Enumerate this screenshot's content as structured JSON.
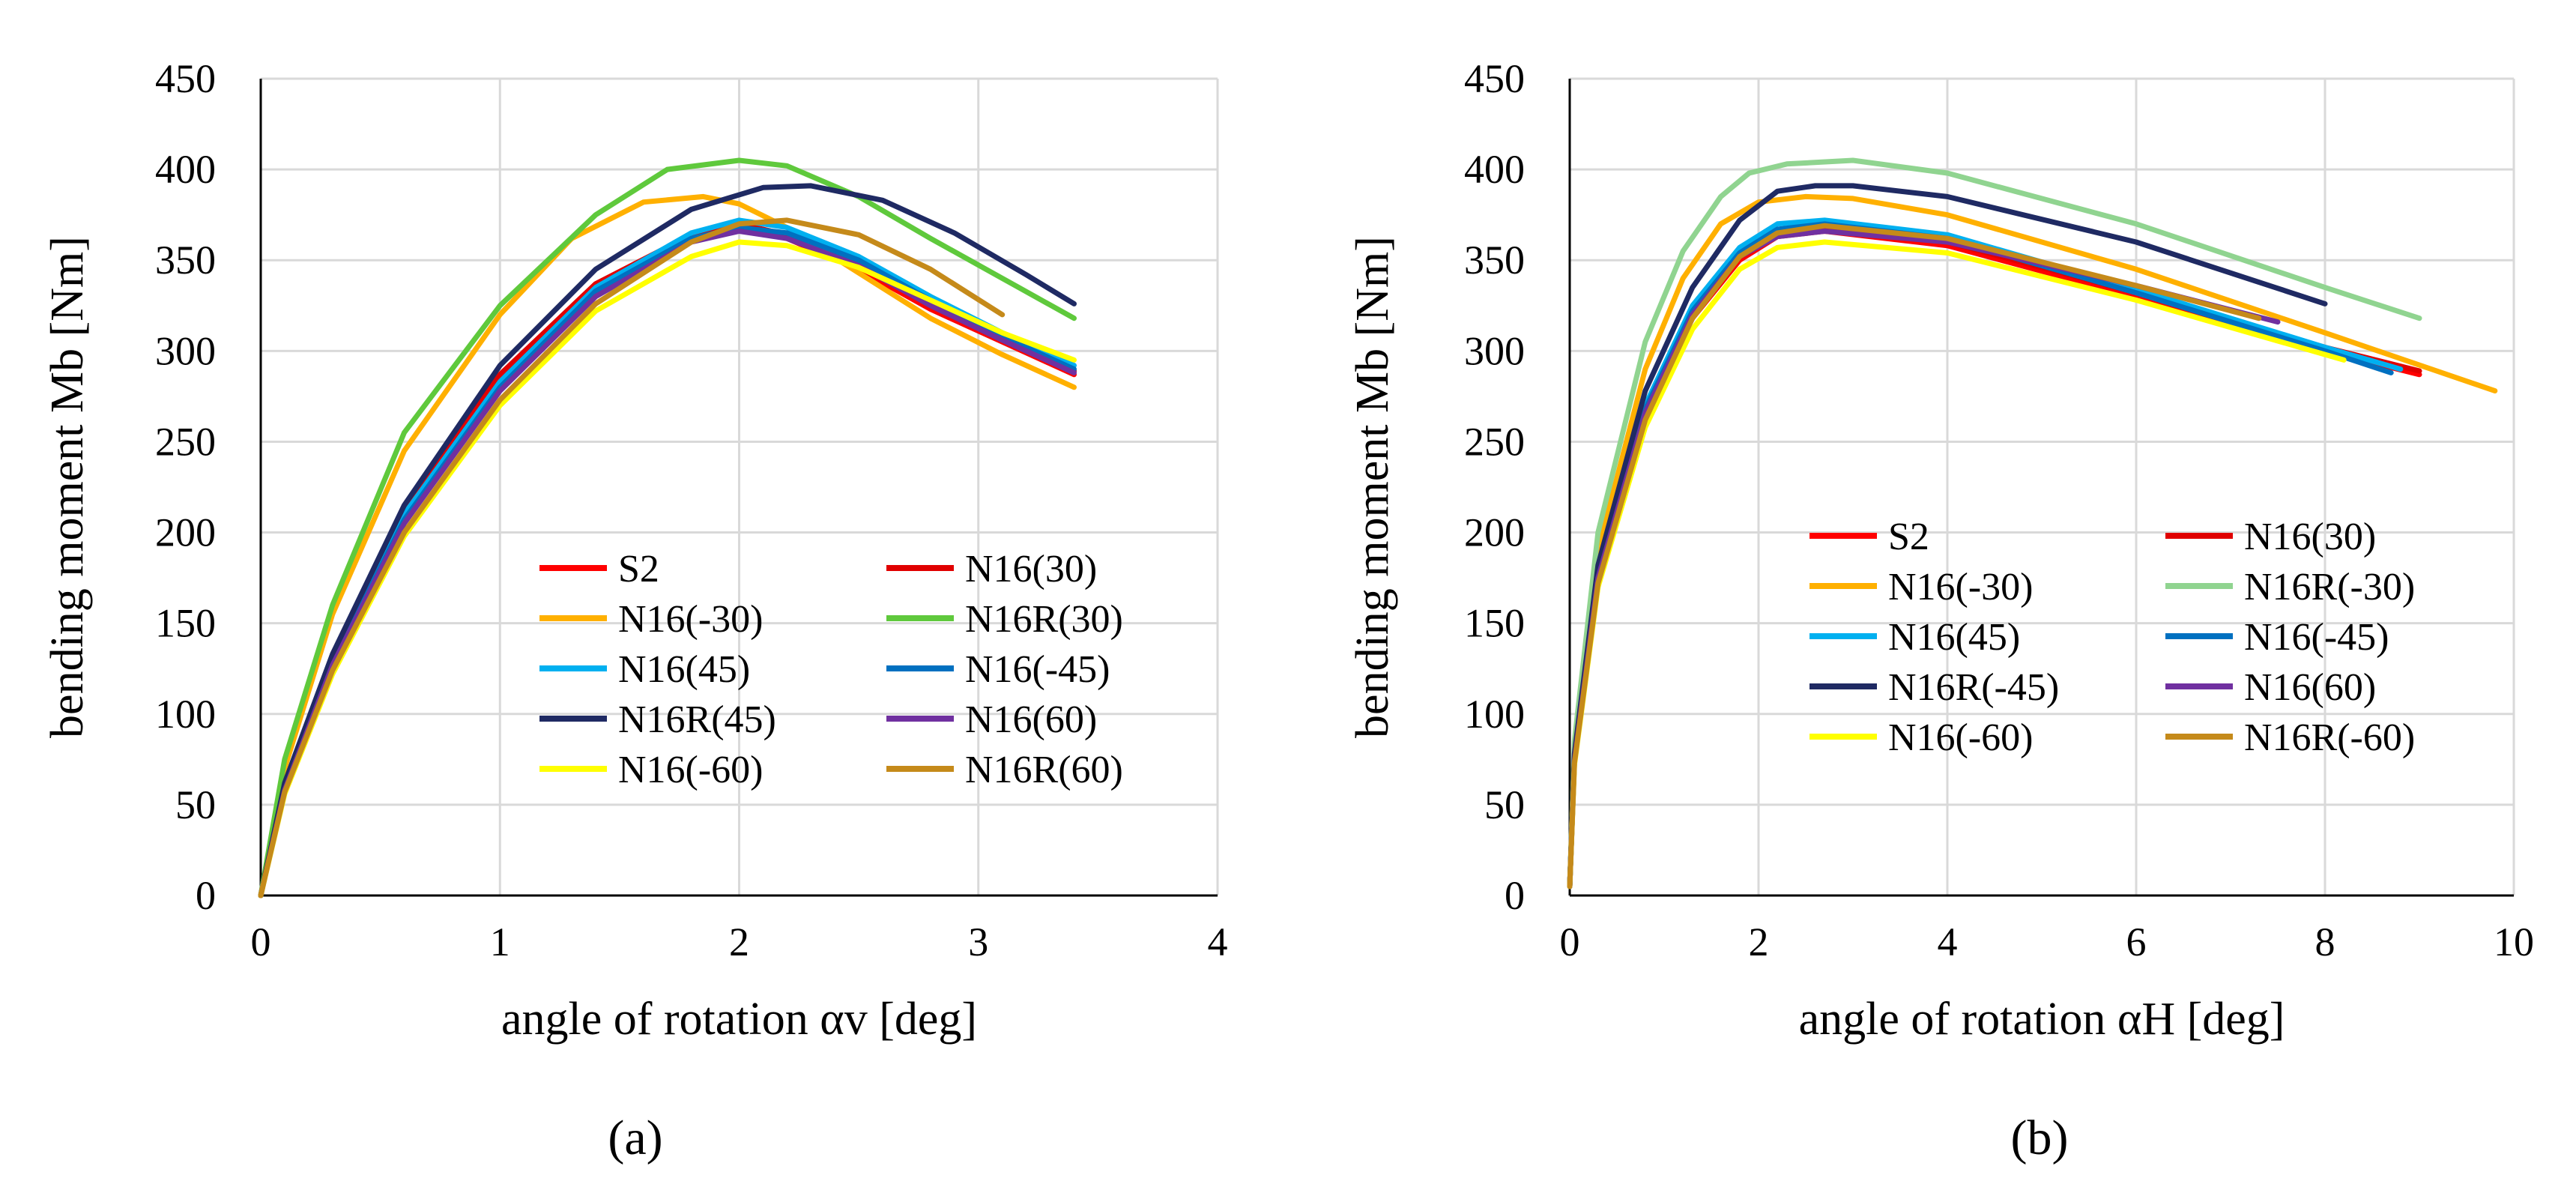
{
  "chart_data": [
    {
      "type": "line",
      "panel_label": "(a)",
      "xlabel": "angle of rotation αv [deg]",
      "ylabel": "bending moment Mb [Nm]",
      "xlim": [
        0,
        4
      ],
      "ylim": [
        0,
        450
      ],
      "xticks": [
        "0",
        "1",
        "2",
        "3",
        "4"
      ],
      "yticks": [
        "0",
        "50",
        "100",
        "150",
        "200",
        "250",
        "300",
        "350",
        "400",
        "450"
      ],
      "grid": true,
      "legend_position": "lower-right",
      "legend_columns": 2,
      "series": [
        {
          "name": "S2",
          "color": "#ff0000",
          "x": [
            0,
            0.1,
            0.3,
            0.6,
            1.0,
            1.4,
            1.8,
            2.0,
            2.2,
            2.5,
            2.8,
            3.1,
            3.4
          ],
          "values": [
            0,
            60,
            130,
            210,
            285,
            335,
            362,
            368,
            362,
            345,
            323,
            305,
            287
          ]
        },
        {
          "name": "N16(30)",
          "color": "#e00000",
          "x": [
            0,
            0.1,
            0.3,
            0.6,
            1.0,
            1.4,
            1.8,
            2.0,
            2.2,
            2.5,
            2.8,
            3.1,
            3.4
          ],
          "values": [
            0,
            61,
            131,
            212,
            287,
            337,
            364,
            370,
            364,
            347,
            325,
            306,
            289
          ]
        },
        {
          "name": "N16(-30)",
          "color": "#ffb000",
          "x": [
            0,
            0.1,
            0.3,
            0.6,
            1.0,
            1.3,
            1.6,
            1.85,
            2.0,
            2.2,
            2.5,
            2.8,
            3.1,
            3.4
          ],
          "values": [
            0,
            70,
            155,
            245,
            320,
            362,
            382,
            385,
            381,
            368,
            343,
            318,
            298,
            280
          ]
        },
        {
          "name": "N16R(30)",
          "color": "#5fc93c",
          "x": [
            0,
            0.1,
            0.3,
            0.6,
            1.0,
            1.4,
            1.7,
            2.0,
            2.2,
            2.5,
            2.8,
            3.1,
            3.4
          ],
          "values": [
            0,
            75,
            160,
            255,
            325,
            375,
            400,
            405,
            402,
            385,
            362,
            340,
            318
          ]
        },
        {
          "name": "N16(45)",
          "color": "#00b0f0",
          "x": [
            0,
            0.1,
            0.3,
            0.6,
            1.0,
            1.4,
            1.8,
            2.0,
            2.2,
            2.5,
            2.8,
            3.1,
            3.4
          ],
          "values": [
            0,
            60,
            130,
            210,
            283,
            335,
            365,
            372,
            368,
            352,
            330,
            310,
            292
          ]
        },
        {
          "name": "N16(-45)",
          "color": "#0070c0",
          "x": [
            0,
            0.1,
            0.3,
            0.6,
            1.0,
            1.4,
            1.8,
            2.0,
            2.2,
            2.5,
            2.8,
            3.1,
            3.4
          ],
          "values": [
            0,
            59,
            128,
            207,
            280,
            333,
            362,
            368,
            365,
            350,
            328,
            308,
            290
          ]
        },
        {
          "name": "N16R(45)",
          "color": "#1f2a63",
          "x": [
            0,
            0.1,
            0.3,
            0.6,
            1.0,
            1.4,
            1.8,
            2.1,
            2.3,
            2.6,
            2.9,
            3.2,
            3.4
          ],
          "values": [
            0,
            62,
            133,
            215,
            292,
            345,
            378,
            390,
            391,
            383,
            365,
            342,
            326
          ]
        },
        {
          "name": "N16(60)",
          "color": "#7030a0",
          "x": [
            0,
            0.1,
            0.3,
            0.6,
            1.0,
            1.4,
            1.8,
            2.0,
            2.2,
            2.5,
            2.8,
            3.1,
            3.4
          ],
          "values": [
            0,
            58,
            127,
            205,
            278,
            330,
            360,
            366,
            362,
            347,
            325,
            306,
            288
          ]
        },
        {
          "name": "N16(-60)",
          "color": "#ffff00",
          "x": [
            0,
            0.1,
            0.3,
            0.6,
            1.0,
            1.4,
            1.8,
            2.0,
            2.2,
            2.5,
            2.8,
            3.1,
            3.4
          ],
          "values": [
            0,
            56,
            122,
            198,
            270,
            322,
            352,
            360,
            358,
            346,
            328,
            310,
            295
          ]
        },
        {
          "name": "N16R(60)",
          "color": "#c58a1a",
          "x": [
            0,
            0.1,
            0.3,
            0.6,
            1.0,
            1.4,
            1.8,
            2.0,
            2.2,
            2.5,
            2.8,
            3.1
          ],
          "values": [
            0,
            57,
            124,
            200,
            273,
            326,
            360,
            370,
            372,
            364,
            345,
            320
          ]
        }
      ]
    },
    {
      "type": "line",
      "panel_label": "(b)",
      "xlabel": "angle of rotation αH [deg]",
      "ylabel": "bending moment Mb [Nm]",
      "xlim": [
        0,
        10
      ],
      "ylim": [
        0,
        450
      ],
      "xticks": [
        "0",
        "2",
        "4",
        "6",
        "8",
        "10"
      ],
      "yticks": [
        "0",
        "50",
        "100",
        "150",
        "200",
        "250",
        "300",
        "350",
        "400",
        "450"
      ],
      "grid": true,
      "legend_position": "lower-right",
      "legend_columns": 2,
      "series": [
        {
          "name": "S2",
          "color": "#ff0000",
          "x": [
            0,
            0.05,
            0.3,
            0.8,
            1.3,
            1.8,
            2.2,
            2.7,
            4,
            6,
            8,
            9
          ],
          "values": [
            5,
            75,
            175,
            265,
            318,
            350,
            363,
            366,
            358,
            330,
            300,
            287
          ]
        },
        {
          "name": "N16(30)",
          "color": "#e00000",
          "x": [
            0,
            0.05,
            0.3,
            0.8,
            1.3,
            1.8,
            2.2,
            2.7,
            4,
            6,
            8,
            9
          ],
          "values": [
            5,
            76,
            177,
            268,
            320,
            352,
            365,
            368,
            360,
            332,
            302,
            289
          ]
        },
        {
          "name": "N16(-30)",
          "color": "#ffb000",
          "x": [
            0,
            0.05,
            0.3,
            0.8,
            1.2,
            1.6,
            2.0,
            2.5,
            3,
            4,
            6,
            8,
            9.8
          ],
          "values": [
            5,
            80,
            190,
            290,
            340,
            370,
            382,
            385,
            384,
            375,
            345,
            310,
            278
          ]
        },
        {
          "name": "N16R(-30)",
          "color": "#90d490",
          "x": [
            0,
            0.05,
            0.3,
            0.8,
            1.2,
            1.6,
            1.9,
            2.3,
            3,
            4,
            6,
            8,
            9
          ],
          "values": [
            5,
            85,
            200,
            305,
            355,
            385,
            398,
            403,
            405,
            398,
            370,
            335,
            318
          ]
        },
        {
          "name": "N16(45)",
          "color": "#00b0f0",
          "x": [
            0,
            0.05,
            0.3,
            0.8,
            1.3,
            1.8,
            2.2,
            2.7,
            4,
            6,
            8,
            8.8
          ],
          "values": [
            5,
            76,
            178,
            270,
            325,
            357,
            370,
            372,
            364,
            334,
            302,
            290
          ]
        },
        {
          "name": "N16(-45)",
          "color": "#0070c0",
          "x": [
            0,
            0.05,
            0.3,
            0.8,
            1.3,
            1.8,
            2.2,
            2.7,
            4,
            6,
            8,
            8.7
          ],
          "values": [
            5,
            75,
            176,
            268,
            322,
            354,
            367,
            370,
            362,
            332,
            300,
            288
          ]
        },
        {
          "name": "N16R(-45)",
          "color": "#1f2a63",
          "x": [
            0,
            0.05,
            0.3,
            0.8,
            1.3,
            1.8,
            2.2,
            2.6,
            3,
            4,
            6,
            8
          ],
          "values": [
            5,
            78,
            182,
            278,
            335,
            372,
            388,
            391,
            391,
            385,
            360,
            326
          ]
        },
        {
          "name": "N16(60)",
          "color": "#7030a0",
          "x": [
            0,
            0.05,
            0.3,
            0.8,
            1.3,
            1.8,
            2.2,
            2.7,
            4,
            6,
            7.5
          ],
          "values": [
            5,
            74,
            175,
            266,
            320,
            352,
            363,
            366,
            360,
            336,
            316
          ]
        },
        {
          "name": "N16(-60)",
          "color": "#ffff00",
          "x": [
            0,
            0.05,
            0.3,
            0.8,
            1.3,
            1.8,
            2.2,
            2.7,
            4,
            6,
            8.2
          ],
          "values": [
            5,
            72,
            170,
            258,
            312,
            345,
            357,
            360,
            354,
            328,
            295
          ]
        },
        {
          "name": "N16R(-60)",
          "color": "#c58a1a",
          "x": [
            0,
            0.05,
            0.3,
            0.8,
            1.3,
            1.8,
            2.2,
            2.7,
            4,
            6,
            7.3
          ],
          "values": [
            5,
            73,
            172,
            262,
            318,
            352,
            365,
            369,
            362,
            336,
            318
          ]
        }
      ]
    }
  ]
}
